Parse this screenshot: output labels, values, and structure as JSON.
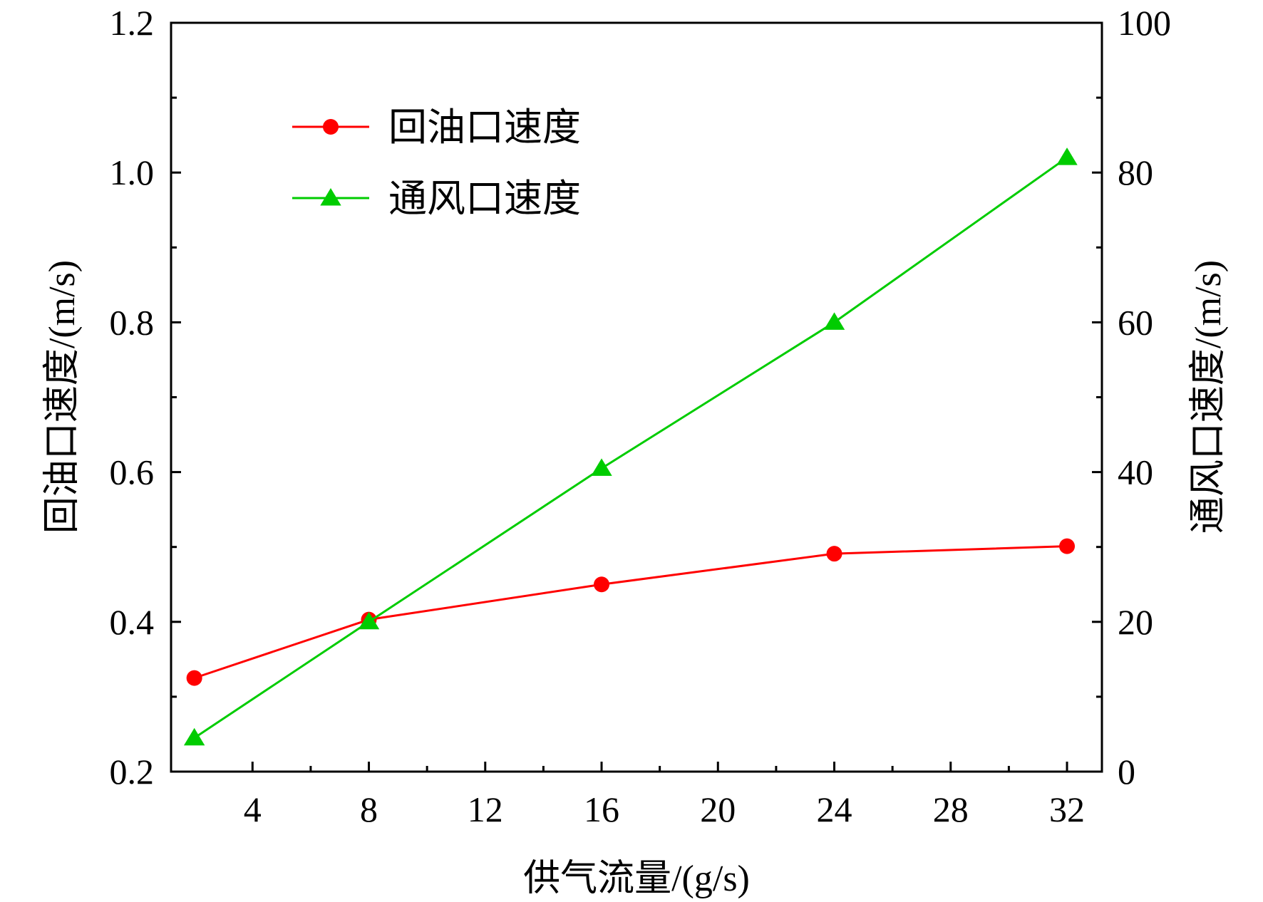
{
  "chart_data": {
    "type": "line",
    "xlabel": "供气流量/(g/s)",
    "ylabel_left": "回油口速度/(m/s)",
    "ylabel_right": "通风口速度/(m/s)",
    "xlim": [
      1.2,
      33.2
    ],
    "ylim_left": [
      0.2,
      1.2
    ],
    "ylim_right": [
      0,
      100
    ],
    "x_ticks": [
      4,
      8,
      12,
      16,
      20,
      24,
      28,
      32
    ],
    "x_tick_labels": [
      "4",
      "8",
      "12",
      "16",
      "20",
      "24",
      "28",
      "32"
    ],
    "x_minor_ticks": [
      6,
      10,
      14,
      18,
      22,
      26,
      30
    ],
    "y_left_ticks": [
      0.2,
      0.4,
      0.6,
      0.8,
      1.0,
      1.2
    ],
    "y_left_tick_labels": [
      "0.2",
      "0.4",
      "0.6",
      "0.8",
      "1.0",
      "1.2"
    ],
    "y_left_minor_ticks": [
      0.3,
      0.5,
      0.7,
      0.9,
      1.1
    ],
    "y_right_ticks": [
      0,
      20,
      40,
      60,
      80,
      100
    ],
    "y_right_tick_labels": [
      "0",
      "20",
      "40",
      "60",
      "80",
      "100"
    ],
    "y_right_minor_ticks": [
      10,
      30,
      50,
      70,
      90
    ],
    "grid": false,
    "legend_position": "top-left",
    "series": [
      {
        "name": "回油口速度",
        "axis": "left",
        "marker": "circle",
        "color": "#ff0000",
        "x": [
          2,
          8,
          16,
          24,
          32
        ],
        "y": [
          0.325,
          0.403,
          0.45,
          0.491,
          0.501
        ]
      },
      {
        "name": "通风口速度",
        "axis": "right",
        "marker": "triangle",
        "color": "#00cc00",
        "x": [
          2,
          8,
          16,
          24,
          32
        ],
        "y": [
          4.5,
          20,
          40.5,
          60,
          82
        ]
      }
    ]
  }
}
